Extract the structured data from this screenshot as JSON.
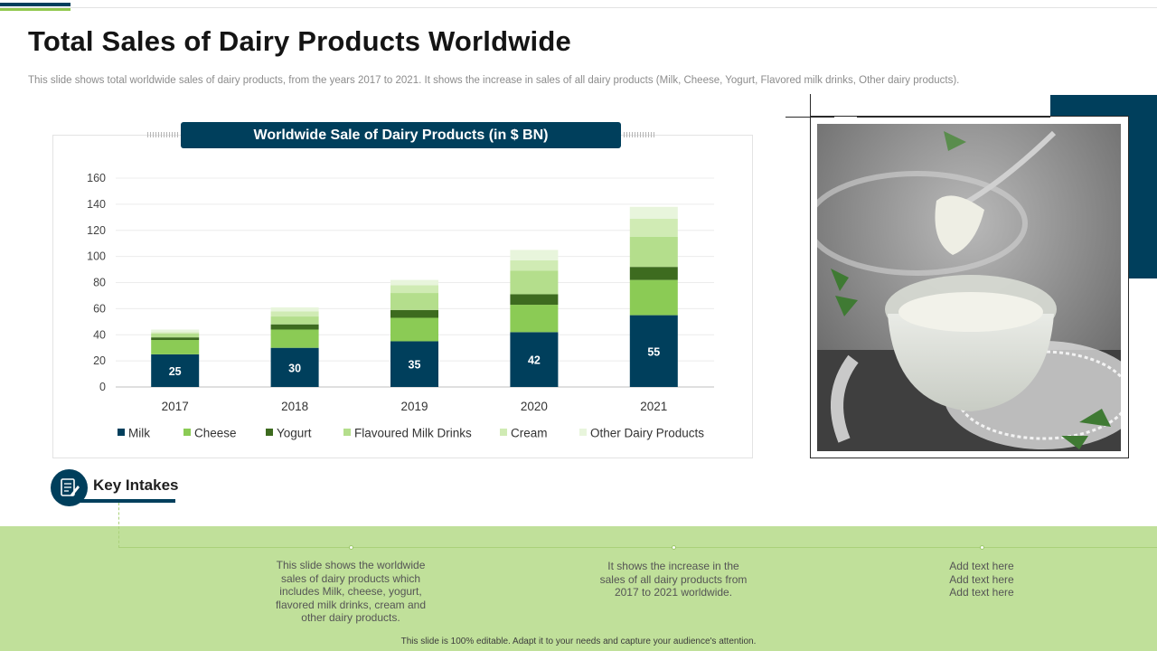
{
  "slide": {
    "title": "Total Sales of Dairy Products Worldwide",
    "subtitle": "This slide shows total worldwide sales of dairy products, from the years 2017 to 2021. It shows the increase in sales of all dairy products (Milk,  Cheese, Yogurt, Flavored milk drinks, Other dairy products).",
    "footer": "This slide is 100% editable.  Adapt it to your needs and capture your audience's attention."
  },
  "colors": {
    "navy": "#003f5c",
    "green_band": "#c0e09a",
    "milk": "#003f5c",
    "cheese": "#8bcb55",
    "yogurt": "#3d6b1f",
    "flavoured": "#b4de8c",
    "cream": "#d0ebb4",
    "other": "#e8f5dc"
  },
  "chart_data": {
    "type": "bar",
    "stacked": true,
    "title": "Worldwide Sale of Dairy Products (in $ BN)",
    "xlabel": "",
    "ylabel": "",
    "ylim": [
      0,
      160
    ],
    "yticks": [
      0,
      20,
      40,
      60,
      80,
      100,
      120,
      140,
      160
    ],
    "categories": [
      "2017",
      "2018",
      "2019",
      "2020",
      "2021"
    ],
    "grid": true,
    "legend_position": "bottom",
    "series": [
      {
        "name": "Milk",
        "values": [
          25,
          30,
          35,
          42,
          55
        ],
        "labels_shown": true
      },
      {
        "name": "Cheese",
        "values": [
          11,
          14,
          18,
          21,
          27
        ]
      },
      {
        "name": "Yogurt",
        "values": [
          2,
          4,
          6,
          8,
          10
        ]
      },
      {
        "name": "Flavoured Milk Drinks",
        "values": [
          3,
          6,
          13,
          18,
          23
        ]
      },
      {
        "name": "Cream",
        "values": [
          1,
          4,
          6,
          8,
          14
        ]
      },
      {
        "name": "Other Dairy Products",
        "values": [
          2,
          3,
          4,
          8,
          9
        ]
      }
    ]
  },
  "key_intakes": {
    "heading": "Key Intakes",
    "items": [
      {
        "text": "This slide shows the worldwide sales of dairy products which includes Milk, cheese, yogurt, flavored milk drinks, cream and other dairy products."
      },
      {
        "text": "It shows the increase in the sales of all dairy products from 2017 to 2021 worldwide."
      },
      {
        "text": "Add text here\nAdd text here\nAdd text here"
      }
    ]
  },
  "icons": {
    "key_intakes_icon": "notepad-pen-icon",
    "photo": "yogurt-bowl-photo"
  }
}
